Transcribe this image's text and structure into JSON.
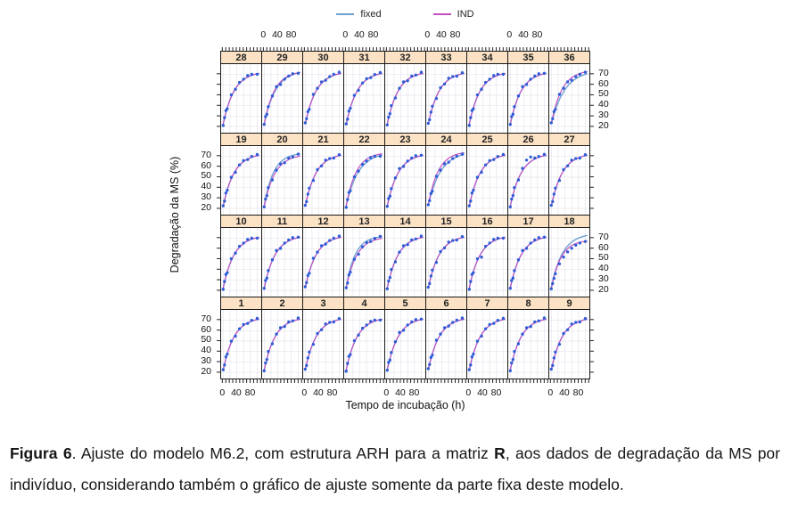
{
  "legend": {
    "items": [
      {
        "label": "fixed",
        "color": "#6f9fd0"
      },
      {
        "label": "IND",
        "color": "#c24fc2"
      }
    ]
  },
  "axes": {
    "x_title": "Tempo de incubação (h)",
    "y_title": "Degradação da MS (%)"
  },
  "caption": {
    "bold1": "Figura 6",
    "part1": ". Ajuste do modelo M6.2, com estrutura ARH para a matriz ",
    "bold2": "R",
    "part2": ", aos dados de degradação da MS por indivíduo, considerando também o gráfico de ajuste somente da parte fixa deste modelo."
  },
  "chart_data": {
    "type": "scatter",
    "layout": "lattice small-multiples, 4 rows x 9 columns, panels numbered 1-36",
    "title": "",
    "xlabel": "Tempo de incubação (h)",
    "ylabel": "Degradação da MS (%)",
    "x_range": [
      -6,
      112
    ],
    "y_range": [
      14,
      80
    ],
    "x_minor_ticks": [
      0,
      10,
      20,
      30,
      40,
      50,
      60,
      70,
      80,
      90,
      100,
      110
    ],
    "x_tick_labels": [
      0,
      40,
      80
    ],
    "y_ticks": [
      20,
      30,
      40,
      50,
      60,
      70
    ],
    "y_tick_labels_desc": [
      70,
      60,
      50,
      40,
      30,
      20
    ],
    "x_gridlines": [
      0,
      20,
      40,
      60,
      80,
      100
    ],
    "grid": true,
    "legend_position": "top",
    "rows": [
      [
        28,
        29,
        30,
        31,
        32,
        33,
        34,
        35,
        36
      ],
      [
        19,
        20,
        21,
        22,
        23,
        24,
        25,
        26,
        27
      ],
      [
        10,
        11,
        12,
        13,
        14,
        15,
        16,
        17,
        18
      ],
      [
        1,
        2,
        3,
        4,
        5,
        6,
        7,
        8,
        9
      ]
    ],
    "top_label_cols": [
      1,
      3,
      5,
      7
    ],
    "bottom_label_cols": [
      0,
      2,
      4,
      6,
      8
    ],
    "right_label_rows": [
      0,
      2
    ],
    "left_label_rows": [
      1,
      3
    ],
    "colors": {
      "grid": "#e4e4ee",
      "points": "#2e5cd6",
      "fixed": "#6f9fd0",
      "ind": "#c24fc2"
    },
    "x": [
      0,
      4,
      8,
      12,
      24,
      36,
      48,
      60,
      72,
      84,
      100
    ],
    "curve_default": {
      "fixed": [
        73,
        51,
        0.031
      ],
      "ind": [
        73,
        51,
        0.031
      ]
    },
    "curve_model": "y = A - B * exp(-k * t), params [A, B, k]",
    "panels": {
      "1": {
        "y": [
          22.5,
          27.0,
          34.8,
          37.5,
          49.9,
          54.8,
          61.9,
          66.0,
          67.0,
          70.0,
          71.9
        ]
      },
      "2": {
        "y": [
          21.5,
          29.0,
          32.3,
          40.0,
          47.4,
          56.8,
          62.9,
          64.0,
          68.5,
          69.5,
          72.2
        ]
      },
      "3": {
        "y": [
          23.0,
          26.5,
          33.8,
          39.5,
          46.9,
          57.3,
          60.9,
          66.5,
          68.0,
          68.4,
          71.7
        ]
      },
      "4": {
        "y": [
          21.0,
          28.5,
          35.3,
          37.0,
          50.4,
          55.8,
          62.4,
          65.5,
          69.0,
          70.2,
          70.2
        ]
      },
      "5": {
        "y": [
          22.0,
          29.5,
          31.8,
          39.0,
          49.4,
          58.3,
          60.4,
          65.5,
          68.5,
          70.7,
          71.2
        ]
      },
      "6": {
        "y": [
          23.5,
          27.5,
          34.3,
          36.5,
          50.9,
          56.8,
          62.9,
          64.5,
          68.0,
          70.2,
          72.2
        ]
      },
      "7": {
        "y": [
          22.5,
          27.0,
          34.8,
          37.5,
          49.9,
          54.8,
          61.9,
          66.0,
          67.0,
          70.0,
          71.9
        ]
      },
      "8": {
        "y": [
          21.5,
          29.0,
          32.3,
          40.0,
          47.4,
          56.8,
          62.9,
          64.0,
          68.5,
          69.5,
          72.2
        ]
      },
      "9": {
        "y": [
          23.0,
          26.5,
          33.8,
          39.5,
          46.9,
          57.3,
          60.9,
          66.5,
          68.0,
          68.4,
          71.7
        ]
      },
      "10": {
        "y": [
          21.0,
          28.5,
          35.3,
          37.0,
          50.4,
          55.8,
          62.4,
          65.5,
          69.0,
          70.2,
          70.2
        ]
      },
      "11": {
        "y": [
          22.0,
          29.5,
          31.8,
          39.0,
          49.4,
          58.3,
          60.4,
          65.5,
          68.5,
          70.7,
          71.2
        ]
      },
      "12": {
        "y": [
          23.5,
          27.5,
          34.3,
          36.5,
          50.9,
          56.8,
          62.9,
          64.5,
          68.0,
          70.2,
          72.2
        ]
      },
      "13": {
        "y": [
          22.5,
          27.0,
          34.8,
          37.5,
          49.9,
          54.8,
          61.9,
          66.0,
          67.0,
          70.0,
          71.9
        ],
        "fixed": [
          72.5,
          50,
          0.038
        ],
        "ind": [
          71.5,
          49.5,
          0.033
        ]
      },
      "14": {
        "y": [
          21.5,
          29.0,
          32.3,
          40.0,
          47.4,
          56.8,
          62.9,
          64.0,
          68.5,
          69.5,
          72.2
        ]
      },
      "15": {
        "y": [
          23.0,
          26.5,
          33.8,
          39.5,
          46.9,
          57.3,
          60.9,
          66.5,
          68.0,
          68.4,
          71.7
        ]
      },
      "16": {
        "y": [
          21.0,
          28.5,
          35.3,
          37.0,
          50.4,
          52.0,
          62.4,
          65.5,
          69.0,
          70.2,
          70.2
        ]
      },
      "17": {
        "y": [
          22.0,
          29.5,
          31.8,
          39.0,
          49.4,
          58.3,
          60.4,
          65.5,
          68.5,
          70.7,
          71.2
        ]
      },
      "18": {
        "y": [
          21.5,
          26.5,
          31.5,
          36.0,
          45.5,
          52.0,
          57.0,
          60.5,
          63.5,
          65.5,
          67.0
        ],
        "fixed": [
          75,
          52,
          0.03
        ],
        "ind": [
          68.5,
          47.5,
          0.036
        ]
      },
      "19": {
        "y": [
          22.5,
          27.0,
          34.8,
          37.5,
          49.9,
          54.8,
          61.9,
          66.0,
          67.0,
          70.0,
          71.9
        ]
      },
      "20": {
        "y": [
          21.5,
          29.0,
          32.3,
          40.0,
          47.4,
          56.8,
          62.9,
          64.0,
          68.5,
          69.5,
          72.2
        ],
        "fixed": [
          73.5,
          51,
          0.036
        ],
        "ind": [
          72,
          50.5,
          0.032
        ]
      },
      "21": {
        "y": [
          23.0,
          26.5,
          33.8,
          39.5,
          46.9,
          57.3,
          60.9,
          66.5,
          68.0,
          68.4,
          71.7
        ]
      },
      "22": {
        "y": [
          21.0,
          28.5,
          35.3,
          37.0,
          50.4,
          55.8,
          62.4,
          65.5,
          69.0,
          70.2,
          70.2
        ],
        "fixed": [
          74,
          51.5,
          0.028
        ],
        "ind": [
          74,
          51.5,
          0.034
        ]
      },
      "23": {
        "y": [
          22.0,
          29.5,
          31.8,
          39.0,
          49.4,
          58.3,
          60.4,
          65.5,
          68.5,
          70.7,
          71.2
        ]
      },
      "24": {
        "y": [
          23.5,
          27.5,
          34.3,
          36.5,
          50.9,
          56.8,
          62.9,
          64.5,
          68.0,
          70.2,
          72.2
        ],
        "fixed": [
          75,
          52,
          0.027
        ],
        "ind": [
          75,
          52,
          0.034
        ]
      },
      "25": {
        "y": [
          22.5,
          27.0,
          34.8,
          37.5,
          49.9,
          54.8,
          61.9,
          66.0,
          67.0,
          70.0,
          71.9
        ]
      },
      "26": {
        "y": [
          21.5,
          29.0,
          32.3,
          40.0,
          47.4,
          58.5,
          66.5,
          69.5,
          68.5,
          70.0,
          72.0
        ]
      },
      "27": {
        "y": [
          23.0,
          26.5,
          33.8,
          39.5,
          46.9,
          57.3,
          60.9,
          66.5,
          68.0,
          68.4,
          71.7
        ]
      },
      "28": {
        "y": [
          21.0,
          28.5,
          35.3,
          37.0,
          50.4,
          55.8,
          62.4,
          65.5,
          69.0,
          70.2,
          70.2
        ]
      },
      "29": {
        "y": [
          22.0,
          29.5,
          31.8,
          39.0,
          49.4,
          58.3,
          60.4,
          65.5,
          68.5,
          70.7,
          71.2
        ],
        "fixed": [
          74.5,
          52,
          0.029
        ],
        "ind": [
          73.5,
          51.5,
          0.033
        ]
      },
      "30": {
        "y": [
          23.5,
          27.5,
          34.3,
          36.5,
          50.9,
          56.8,
          62.9,
          64.5,
          68.0,
          70.2,
          72.2
        ]
      },
      "31": {
        "y": [
          22.5,
          27.0,
          34.8,
          37.5,
          49.9,
          54.8,
          61.9,
          66.0,
          67.0,
          70.0,
          71.9
        ]
      },
      "32": {
        "y": [
          21.5,
          29.0,
          32.3,
          40.0,
          47.4,
          56.8,
          62.9,
          64.0,
          68.5,
          69.5,
          72.2
        ]
      },
      "33": {
        "y": [
          23.0,
          26.5,
          33.8,
          39.5,
          46.9,
          57.3,
          60.9,
          66.5,
          68.0,
          68.4,
          71.7
        ]
      },
      "34": {
        "y": [
          21.0,
          28.5,
          35.3,
          37.0,
          50.4,
          55.8,
          62.4,
          65.5,
          69.0,
          70.2,
          70.2
        ]
      },
      "35": {
        "y": [
          22.0,
          29.5,
          31.8,
          39.0,
          49.4,
          58.3,
          60.4,
          65.5,
          68.5,
          70.7,
          71.2
        ]
      },
      "36": {
        "y": [
          23.5,
          27.5,
          34.3,
          36.5,
          50.9,
          56.8,
          62.9,
          64.5,
          68.0,
          70.2,
          72.2
        ],
        "fixed": [
          74.5,
          52,
          0.025
        ],
        "ind": [
          74.5,
          52,
          0.032
        ]
      }
    }
  }
}
